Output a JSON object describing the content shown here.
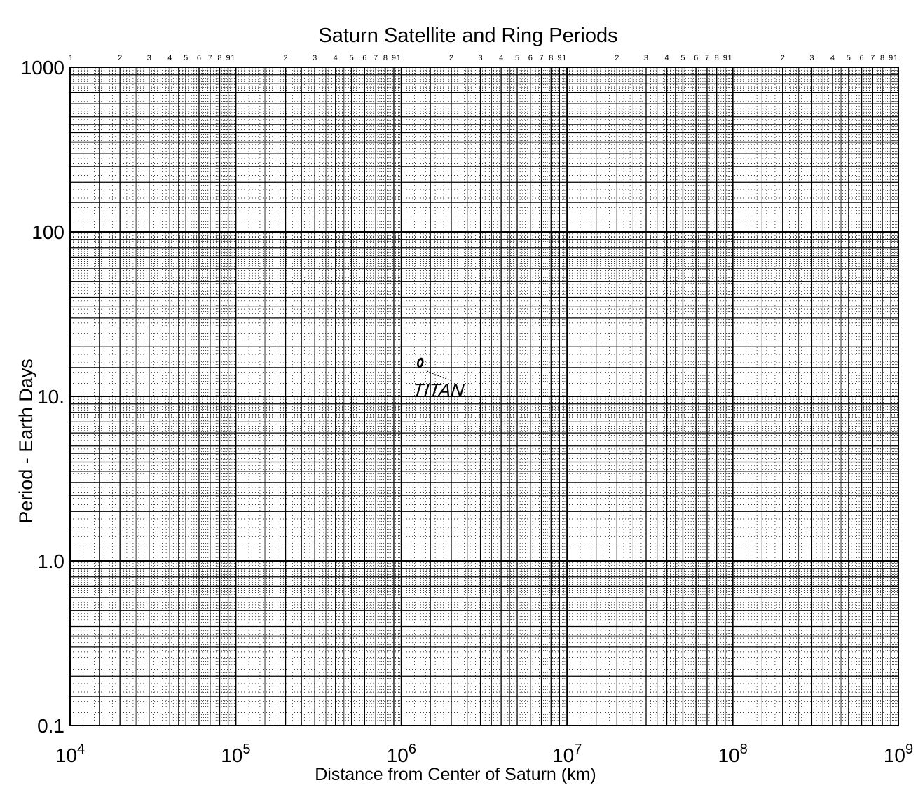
{
  "chart_data": {
    "type": "scatter",
    "title": "Saturn Satellite and Ring Periods",
    "xlabel": "Distance from Center of Saturn (km)",
    "ylabel": "Period - Earth Days",
    "x_scale": "log",
    "y_scale": "log",
    "xlim": [
      10000,
      1000000000
    ],
    "ylim": [
      0.1,
      1000
    ],
    "grid": true,
    "x_ticks": [
      {
        "base": "10",
        "exp": "4"
      },
      {
        "base": "10",
        "exp": "5"
      },
      {
        "base": "10",
        "exp": "6"
      },
      {
        "base": "10",
        "exp": "7"
      },
      {
        "base": "10",
        "exp": "8"
      },
      {
        "base": "10",
        "exp": "9"
      }
    ],
    "y_ticks": [
      "1000",
      "100",
      "10.",
      "1.0",
      "0.1"
    ],
    "cycle_digits": [
      "1",
      "2",
      "3",
      "4",
      "5",
      "6",
      "7",
      "8",
      "9",
      "1"
    ],
    "points": [
      {
        "label": "TITAN",
        "x": 1300000,
        "y": 16
      }
    ]
  }
}
